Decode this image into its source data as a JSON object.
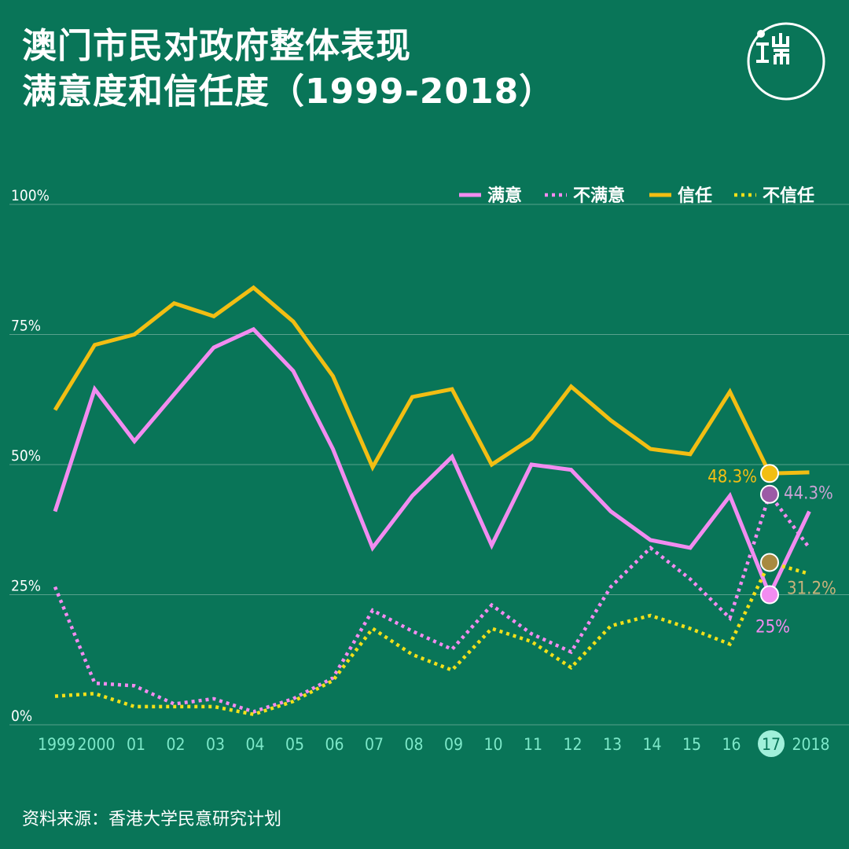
{
  "title_line1": "澳门市民对政府整体表现",
  "title_line2": "满意度和信任度（1999-2018）",
  "source": "资料来源：香港大学民意研究计划",
  "colors": {
    "background": "#097558",
    "satisfied": "#f28cf0",
    "dissatisfied": "#f28cf0",
    "trust": "#f2be13",
    "distrust": "#f2e019",
    "xtick": "#7de8c9",
    "highlight": "#a0f0da"
  },
  "chart_data": {
    "type": "line",
    "title": "澳门市民对政府整体表现满意度和信任度（1999-2018）",
    "x_labels": [
      "1999",
      "2000",
      "01",
      "02",
      "03",
      "04",
      "05",
      "06",
      "07",
      "08",
      "09",
      "10",
      "11",
      "12",
      "13",
      "14",
      "15",
      "16",
      "17",
      "2018"
    ],
    "highlight_x_label": "17",
    "y_ticks": [
      "0%",
      "25%",
      "50%",
      "75%",
      "100%"
    ],
    "y_tick_values": [
      0,
      25,
      50,
      75,
      100
    ],
    "ylim": [
      0,
      100
    ],
    "grid": true,
    "legend_position": "top-right",
    "series": [
      {
        "name": "满意",
        "style": "solid",
        "color": "#f28cf0",
        "values": [
          41,
          64.5,
          54.5,
          63.5,
          72.5,
          76,
          68,
          53,
          34,
          44,
          51.5,
          34.5,
          50,
          49,
          41,
          35.5,
          34,
          44,
          25,
          41
        ]
      },
      {
        "name": "不满意",
        "style": "dotted",
        "color": "#f28cf0",
        "values": [
          26.5,
          8,
          7.5,
          4,
          5,
          2.5,
          5,
          9,
          22,
          18,
          14.5,
          23,
          17.5,
          14,
          26.5,
          34,
          28,
          20.5,
          44.3,
          34
        ]
      },
      {
        "name": "信任",
        "style": "solid",
        "color": "#f2be13",
        "values": [
          60.5,
          73,
          75,
          81,
          78.5,
          84,
          77.5,
          67,
          49.5,
          63,
          64.5,
          50,
          55,
          65,
          58.5,
          53,
          52,
          64,
          48.3,
          48.5
        ]
      },
      {
        "name": "不信任",
        "style": "dotted",
        "color": "#f2e019",
        "values": [
          5.5,
          6,
          3.5,
          3.5,
          3.5,
          2,
          4.5,
          8.5,
          18.5,
          13.5,
          10.5,
          18.5,
          16,
          11,
          19,
          21,
          18.5,
          15.5,
          31.2,
          29
        ]
      }
    ],
    "annotations": [
      {
        "text": "48.3%",
        "series": "信任",
        "x_label": "17",
        "value": 48.3,
        "color": "#f2be13"
      },
      {
        "text": "44.3%",
        "series": "不满意",
        "x_label": "17",
        "value": 44.3,
        "color": "#c9a2d4"
      },
      {
        "text": "31.2%",
        "series": "不信任",
        "x_label": "17",
        "value": 31.2,
        "color": "#c9b27a"
      },
      {
        "text": "25%",
        "series": "满意",
        "x_label": "17",
        "value": 25,
        "color": "#f28cf0"
      }
    ]
  }
}
